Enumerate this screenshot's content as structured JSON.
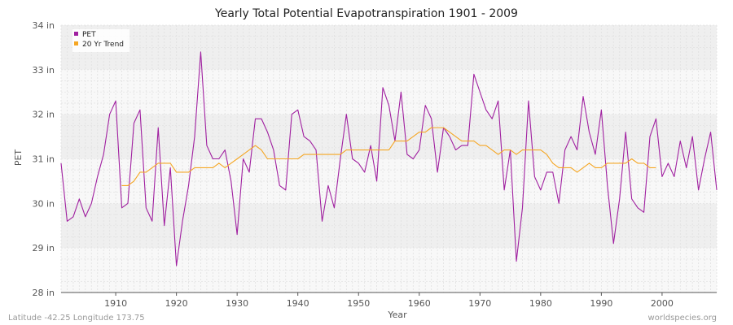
{
  "chart_data": {
    "type": "line",
    "title": "Yearly Total Potential Evapotranspiration 1901 - 2009",
    "xlabel": "Year",
    "ylabel": "PET",
    "xlim": [
      1901,
      2009
    ],
    "ylim": [
      28,
      34
    ],
    "x_ticks": [
      1910,
      1920,
      1930,
      1940,
      1950,
      1960,
      1970,
      1980,
      1990,
      2000
    ],
    "x_tick_labels": [
      "1910",
      "1920",
      "1930",
      "1940",
      "1950",
      "1960",
      "1970",
      "1980",
      "1990",
      "2000"
    ],
    "y_ticks": [
      28,
      29,
      30,
      31,
      32,
      33,
      34
    ],
    "y_tick_labels": [
      "28 in",
      "29 in",
      "30 in",
      "31 in",
      "32 in",
      "33 in",
      "34 in"
    ],
    "grid": true,
    "legend_position": "top-left",
    "series": [
      {
        "name": "PET",
        "color": "#a020a0",
        "x": [
          1901,
          1902,
          1903,
          1904,
          1905,
          1906,
          1907,
          1908,
          1909,
          1910,
          1911,
          1912,
          1913,
          1914,
          1915,
          1916,
          1917,
          1918,
          1919,
          1920,
          1921,
          1922,
          1923,
          1924,
          1925,
          1926,
          1927,
          1928,
          1929,
          1930,
          1931,
          1932,
          1933,
          1934,
          1935,
          1936,
          1937,
          1938,
          1939,
          1940,
          1941,
          1942,
          1943,
          1944,
          1945,
          1946,
          1947,
          1948,
          1949,
          1950,
          1951,
          1952,
          1953,
          1954,
          1955,
          1956,
          1957,
          1958,
          1959,
          1960,
          1961,
          1962,
          1963,
          1964,
          1965,
          1966,
          1967,
          1968,
          1969,
          1970,
          1971,
          1972,
          1973,
          1974,
          1975,
          1976,
          1977,
          1978,
          1979,
          1980,
          1981,
          1982,
          1983,
          1984,
          1985,
          1986,
          1987,
          1988,
          1989,
          1990,
          1991,
          1992,
          1993,
          1994,
          1995,
          1996,
          1997,
          1998,
          1999,
          2000,
          2001,
          2002,
          2003,
          2004,
          2005,
          2006,
          2007,
          2008,
          2009
        ],
        "values": [
          30.9,
          29.6,
          29.7,
          30.1,
          29.7,
          30.0,
          30.6,
          31.1,
          32.0,
          32.3,
          29.9,
          30.0,
          31.8,
          32.1,
          29.9,
          29.6,
          31.7,
          29.5,
          30.8,
          28.6,
          29.6,
          30.4,
          31.5,
          33.4,
          31.3,
          31.0,
          31.0,
          31.2,
          30.5,
          29.3,
          31.0,
          30.7,
          31.9,
          31.9,
          31.6,
          31.2,
          30.4,
          30.3,
          32.0,
          32.1,
          31.5,
          31.4,
          31.2,
          29.6,
          30.4,
          29.9,
          31.0,
          32.0,
          31.0,
          30.9,
          30.7,
          31.3,
          30.5,
          32.6,
          32.2,
          31.4,
          32.5,
          31.1,
          31.0,
          31.2,
          32.2,
          31.9,
          30.7,
          31.7,
          31.5,
          31.2,
          31.3,
          31.3,
          32.9,
          32.5,
          32.1,
          31.9,
          32.3,
          30.3,
          31.2,
          28.7,
          29.9,
          32.3,
          30.6,
          30.3,
          30.7,
          30.7,
          30.0,
          31.2,
          31.5,
          31.2,
          32.4,
          31.6,
          31.1,
          32.1,
          30.4,
          29.1,
          30.1,
          31.6,
          30.1,
          29.9,
          29.8,
          31.5,
          31.9,
          30.6,
          30.9,
          30.6,
          31.4,
          30.8,
          31.5,
          30.3,
          31.0,
          31.6,
          30.3
        ]
      },
      {
        "name": "20 Yr Trend",
        "color": "#f5a623",
        "x": [
          1911,
          1912,
          1913,
          1914,
          1915,
          1916,
          1917,
          1918,
          1919,
          1920,
          1921,
          1922,
          1923,
          1924,
          1925,
          1926,
          1927,
          1928,
          1929,
          1930,
          1931,
          1932,
          1933,
          1934,
          1935,
          1936,
          1937,
          1938,
          1939,
          1940,
          1941,
          1942,
          1943,
          1944,
          1945,
          1946,
          1947,
          1948,
          1949,
          1950,
          1951,
          1952,
          1953,
          1954,
          1955,
          1956,
          1957,
          1958,
          1959,
          1960,
          1961,
          1962,
          1963,
          1964,
          1965,
          1966,
          1967,
          1968,
          1969,
          1970,
          1971,
          1972,
          1973,
          1974,
          1975,
          1976,
          1977,
          1978,
          1979,
          1980,
          1981,
          1982,
          1983,
          1984,
          1985,
          1986,
          1987,
          1988,
          1989,
          1990,
          1991,
          1992,
          1993,
          1994,
          1995,
          1996,
          1997,
          1998,
          1999
        ],
        "values": [
          30.4,
          30.4,
          30.5,
          30.7,
          30.7,
          30.8,
          30.9,
          30.9,
          30.9,
          30.7,
          30.7,
          30.7,
          30.8,
          30.8,
          30.8,
          30.8,
          30.9,
          30.8,
          30.9,
          31.0,
          31.1,
          31.2,
          31.3,
          31.2,
          31.0,
          31.0,
          31.0,
          31.0,
          31.0,
          31.0,
          31.1,
          31.1,
          31.1,
          31.1,
          31.1,
          31.1,
          31.1,
          31.2,
          31.2,
          31.2,
          31.2,
          31.2,
          31.2,
          31.2,
          31.2,
          31.4,
          31.4,
          31.4,
          31.5,
          31.6,
          31.6,
          31.7,
          31.7,
          31.7,
          31.6,
          31.5,
          31.4,
          31.4,
          31.4,
          31.3,
          31.3,
          31.2,
          31.1,
          31.2,
          31.2,
          31.1,
          31.2,
          31.2,
          31.2,
          31.2,
          31.1,
          30.9,
          30.8,
          30.8,
          30.8,
          30.7,
          30.8,
          30.9,
          30.8,
          30.8,
          30.9,
          30.9,
          30.9,
          30.9,
          31.0,
          30.9,
          30.9,
          30.8,
          30.8
        ]
      }
    ]
  },
  "footer": {
    "left": "Latitude -42.25 Longitude 173.75",
    "right": "worldspecies.org"
  },
  "colors": {
    "band_light": "#f8f8f8",
    "band_dark": "#efefef",
    "axis": "#555555"
  }
}
